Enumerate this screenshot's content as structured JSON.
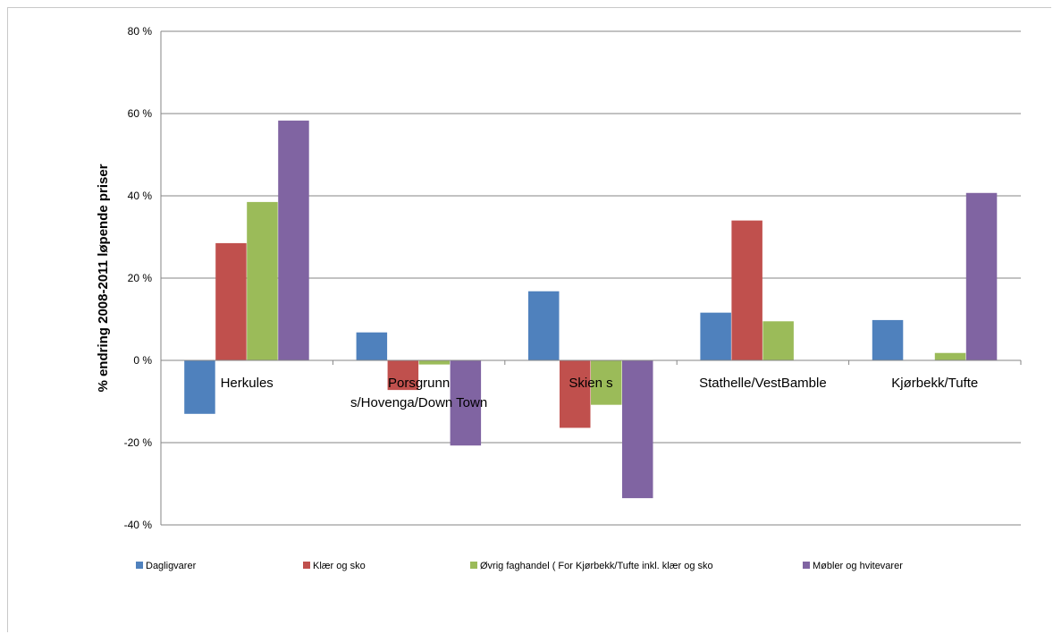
{
  "chart_data": {
    "type": "bar",
    "title": "",
    "xlabel": "",
    "ylabel": "% endring 2008-2011 løpende priser",
    "ylim": [
      -40,
      80
    ],
    "yticks": [
      -40,
      -20,
      0,
      20,
      40,
      60,
      80
    ],
    "ytick_labels": [
      "-40 %",
      "-20 %",
      "0 %",
      "20 %",
      "40 %",
      "60 %",
      "80 %"
    ],
    "grid": true,
    "legend_position": "bottom",
    "categories": [
      [
        "Herkules"
      ],
      [
        "Porsgrunn",
        "s/Hovenga/Down Town"
      ],
      [
        "Skien s"
      ],
      [
        "Stathelle/VestBamble"
      ],
      [
        "Kjørbekk/Tufte"
      ]
    ],
    "series": [
      {
        "name": "Dagligvarer",
        "color": "#4f81bd",
        "values": [
          -13,
          6.8,
          16.8,
          11.6,
          9.8
        ]
      },
      {
        "name": "Klær og sko",
        "color": "#c0504d",
        "values": [
          28.5,
          -7.2,
          -16.4,
          34,
          0
        ]
      },
      {
        "name": "Øvrig faghandel ( For Kjørbekk/Tufte inkl. klær og sko",
        "color": "#9bbb59",
        "values": [
          38.5,
          -1,
          -10.8,
          9.5,
          1.8
        ]
      },
      {
        "name": "Møbler og hvitevarer",
        "color": "#8064a2",
        "values": [
          58.3,
          -20.7,
          -33.5,
          0,
          40.7
        ]
      }
    ]
  }
}
